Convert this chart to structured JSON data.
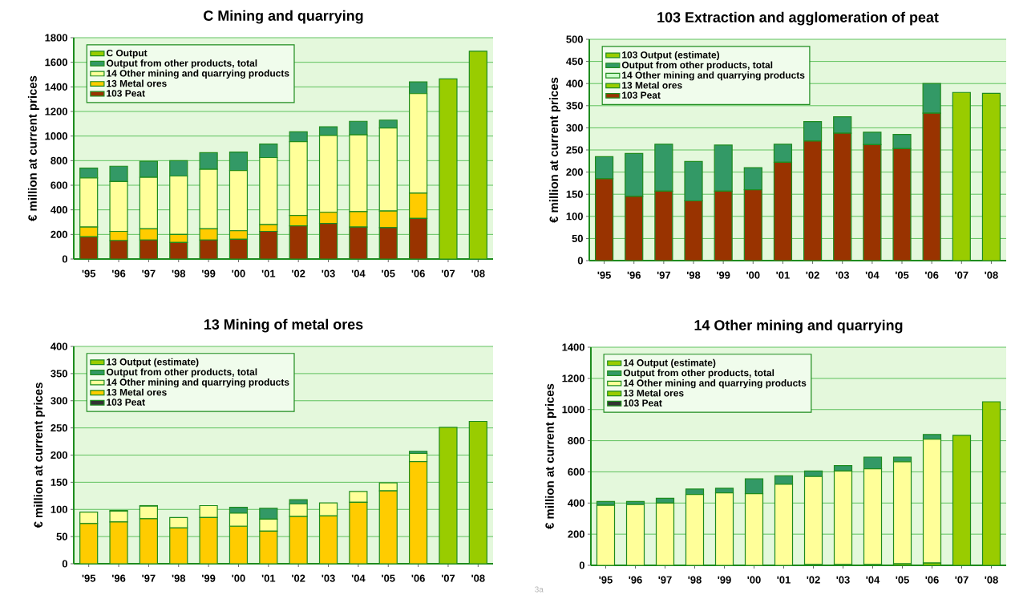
{
  "chart_data": [
    {
      "type": "bar",
      "stacked": true,
      "title": "C Mining and quarrying",
      "ylabel": "€ million at current prices",
      "categories": [
        "'95",
        "'96",
        "'97",
        "'98",
        "'99",
        "'00",
        "'01",
        "'02",
        "'03",
        "'04",
        "'05",
        "'06",
        "'07",
        "'08"
      ],
      "ylim": [
        0,
        1800
      ],
      "yticks": [
        0,
        200,
        400,
        600,
        800,
        1000,
        1200,
        1400,
        1600,
        1800
      ],
      "grid": "y",
      "legend": "top left",
      "series": [
        {
          "name": "103 Peat",
          "color": "#993300",
          "values": [
            180,
            150,
            155,
            135,
            155,
            160,
            225,
            270,
            290,
            260,
            255,
            330,
            null,
            null
          ]
        },
        {
          "name": "13 Metal ores",
          "color": "#ffcc00",
          "values": [
            80,
            75,
            90,
            65,
            90,
            70,
            55,
            85,
            90,
            125,
            135,
            205,
            null,
            null
          ]
        },
        {
          "name": "14 Other mining and quarrying products",
          "color": "#ffff99",
          "values": [
            400,
            405,
            420,
            475,
            485,
            490,
            545,
            600,
            625,
            625,
            675,
            810,
            null,
            null
          ]
        },
        {
          "name": "Output from other products, total",
          "color": "#339966",
          "values": [
            80,
            125,
            130,
            125,
            135,
            150,
            110,
            80,
            70,
            110,
            65,
            95,
            null,
            null
          ]
        },
        {
          "name": "C Output",
          "color": "#99cc00",
          "values": [
            null,
            null,
            null,
            null,
            null,
            null,
            null,
            null,
            null,
            null,
            null,
            null,
            1465,
            1690
          ]
        }
      ]
    },
    {
      "type": "bar",
      "stacked": true,
      "title": "103 Extraction and agglomeration of peat",
      "ylabel": "€ million at current prices",
      "categories": [
        "'95",
        "'96",
        "'97",
        "'98",
        "'99",
        "'00",
        "'01",
        "'02",
        "'03",
        "'04",
        "'05",
        "'06",
        "'07",
        "'08"
      ],
      "ylim": [
        0,
        500
      ],
      "yticks": [
        0,
        50,
        100,
        150,
        200,
        250,
        300,
        350,
        400,
        450,
        500
      ],
      "grid": "y",
      "legend": "top left",
      "series": [
        {
          "name": "103 Peat",
          "color": "#993300",
          "values": [
            185,
            145,
            157,
            135,
            157,
            160,
            222,
            270,
            288,
            262,
            253,
            333,
            null,
            null
          ]
        },
        {
          "name": "13 Metal ores",
          "color": "#99cc00",
          "values": [
            null,
            null,
            null,
            null,
            null,
            null,
            null,
            null,
            null,
            null,
            null,
            null,
            null,
            null
          ]
        },
        {
          "name": "14 Other mining and quarrying products",
          "color": "#ccffcc",
          "values": [
            null,
            null,
            null,
            null,
            null,
            null,
            null,
            null,
            null,
            null,
            null,
            null,
            null,
            null
          ]
        },
        {
          "name": "Output from other products, total",
          "color": "#339966",
          "values": [
            50,
            97,
            106,
            89,
            104,
            50,
            41,
            44,
            37,
            28,
            32,
            67,
            null,
            null
          ]
        },
        {
          "name": "103 Output (estimate)",
          "color": "#99cc00",
          "values": [
            null,
            null,
            null,
            null,
            null,
            null,
            null,
            null,
            null,
            null,
            null,
            null,
            380,
            378
          ]
        }
      ]
    },
    {
      "type": "bar",
      "stacked": true,
      "title": "13 Mining of metal ores",
      "ylabel": "€ million at current prices",
      "categories": [
        "'95",
        "'96",
        "'97",
        "'98",
        "'99",
        "'00",
        "'01",
        "'02",
        "'03",
        "'04",
        "'05",
        "'06",
        "'07",
        "'08"
      ],
      "ylim": [
        0,
        400
      ],
      "yticks": [
        0,
        50,
        100,
        150,
        200,
        250,
        300,
        350,
        400
      ],
      "grid": "y",
      "legend": "top left",
      "series": [
        {
          "name": "103 Peat",
          "color": "#333333",
          "values": [
            null,
            null,
            null,
            null,
            null,
            null,
            null,
            null,
            null,
            null,
            null,
            null,
            null,
            null
          ]
        },
        {
          "name": "13 Metal ores",
          "color": "#ffcc00",
          "values": [
            74,
            77,
            83,
            66,
            85,
            69,
            60,
            87,
            88,
            113,
            134,
            188,
            null,
            null
          ]
        },
        {
          "name": "14 Other mining and quarrying products",
          "color": "#ffff99",
          "values": [
            21,
            20,
            23,
            19,
            22,
            24,
            22,
            23,
            24,
            20,
            15,
            15,
            null,
            null
          ]
        },
        {
          "name": "Output from other products, total",
          "color": "#339966",
          "values": [
            null,
            1,
            1,
            null,
            null,
            11,
            20,
            8,
            null,
            null,
            null,
            4,
            null,
            null
          ]
        },
        {
          "name": "13 Output (estimate)",
          "color": "#99cc00",
          "values": [
            null,
            null,
            null,
            null,
            null,
            null,
            null,
            null,
            null,
            null,
            null,
            null,
            251,
            262
          ]
        }
      ]
    },
    {
      "type": "bar",
      "stacked": true,
      "title": "14 Other mining and quarrying",
      "ylabel": "€ million at current prices",
      "categories": [
        "'95",
        "'96",
        "'97",
        "'98",
        "'99",
        "'00",
        "'01",
        "'02",
        "'03",
        "'04",
        "'05",
        "'06",
        "'07",
        "'08"
      ],
      "ylim": [
        0,
        1400
      ],
      "yticks": [
        0,
        200,
        400,
        600,
        800,
        1000,
        1200,
        1400
      ],
      "grid": "y",
      "legend": "top left",
      "annotations": [
        "3a"
      ],
      "series": [
        {
          "name": "103 Peat",
          "color": "#333333",
          "values": [
            null,
            null,
            null,
            null,
            null,
            null,
            null,
            null,
            null,
            null,
            null,
            null,
            null,
            null
          ]
        },
        {
          "name": "13 Metal ores",
          "color": "#99cc00",
          "values": [
            null,
            null,
            null,
            null,
            null,
            null,
            null,
            5,
            5,
            5,
            10,
            15,
            null,
            null
          ]
        },
        {
          "name": "14 Other mining and quarrying products",
          "color": "#ffff99",
          "values": [
            385,
            390,
            400,
            455,
            465,
            460,
            520,
            565,
            600,
            615,
            655,
            795,
            null,
            null
          ]
        },
        {
          "name": "Output from other products, total",
          "color": "#339966",
          "values": [
            25,
            20,
            30,
            35,
            30,
            95,
            55,
            35,
            35,
            75,
            30,
            30,
            null,
            null
          ]
        },
        {
          "name": "14 Output (estimate)",
          "color": "#99cc00",
          "values": [
            null,
            null,
            null,
            null,
            null,
            null,
            null,
            null,
            null,
            null,
            null,
            null,
            835,
            1050
          ]
        }
      ]
    }
  ]
}
